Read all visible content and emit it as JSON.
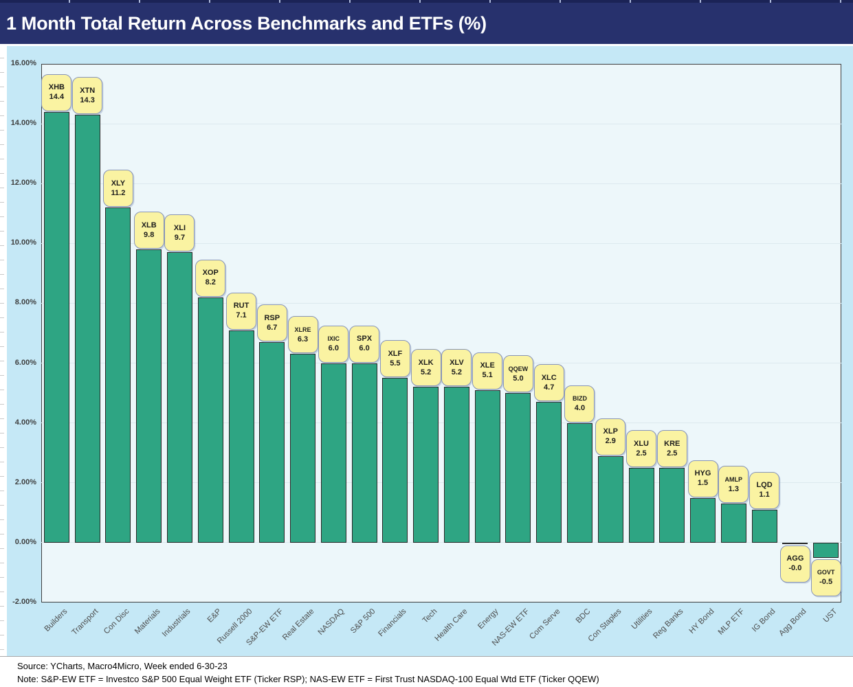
{
  "header": {
    "title": "1 Month Total Return Across Benchmarks and ETFs (%)"
  },
  "y_axis": {
    "tick_labels": [
      "16.00%",
      "14.00%",
      "12.00%",
      "10.00%",
      "8.00%",
      "6.00%",
      "4.00%",
      "2.00%",
      "0.00%",
      "-2.00%"
    ]
  },
  "chart_data": {
    "type": "bar",
    "title": "1 Month Total Return Across Benchmarks and ETFs (%)",
    "categories": [
      "Builders",
      "Transport",
      "Con Disc",
      "Materials",
      "Industrials",
      "E&P",
      "Russell 2000",
      "S&P-EW ETF",
      "Real Estate",
      "NASDAQ",
      "S&P 500",
      "Financials",
      "Tech",
      "Health Care",
      "Energy",
      "NAS-EW ETF",
      "Com Serve",
      "BDC",
      "Con Staples",
      "Utilities",
      "Reg Banks",
      "HY Bond",
      "MLP ETF",
      "IG Bond",
      "Agg Bond",
      "UST"
    ],
    "tickers": [
      "XHB",
      "XTN",
      "XLY",
      "XLB",
      "XLI",
      "XOP",
      "RUT",
      "RSP",
      "XLRE",
      "IXIC",
      "SPX",
      "XLF",
      "XLK",
      "XLV",
      "XLE",
      "QQEW",
      "XLC",
      "BIZD",
      "XLP",
      "XLU",
      "KRE",
      "HYG",
      "AMLP",
      "LQD",
      "AGG",
      "GOVT"
    ],
    "series": [
      {
        "name": "1 Month Total Return (%)",
        "values": [
          14.4,
          14.3,
          11.2,
          9.8,
          9.7,
          8.2,
          7.1,
          6.7,
          6.3,
          6.0,
          6.0,
          5.5,
          5.2,
          5.2,
          5.1,
          5.0,
          4.7,
          4.0,
          2.9,
          2.5,
          2.5,
          1.5,
          1.3,
          1.1,
          -0.0,
          -0.5
        ]
      }
    ],
    "value_labels": [
      "14.4",
      "14.3",
      "11.2",
      "9.8",
      "9.7",
      "8.2",
      "7.1",
      "6.7",
      "6.3",
      "6.0",
      "6.0",
      "5.5",
      "5.2",
      "5.2",
      "5.1",
      "5.0",
      "4.7",
      "4.0",
      "2.9",
      "2.5",
      "2.5",
      "1.5",
      "1.3",
      "1.1",
      "-0.0",
      "-0.5"
    ],
    "ylim": [
      -2,
      16
    ],
    "ytick_step": 2,
    "grid": true,
    "legend": "none",
    "label_style": "rounded-yellow-callout"
  },
  "footer": {
    "source": "Source: YCharts, Macro4Micro, Week ended 6-30-23",
    "note": "Note: S&P-EW ETF = Investco S&P 500 Equal Weight ETF (Ticker RSP); NAS-EW ETF = First Trust NASDAQ-100 Equal Wtd ETF (Ticker QQEW)"
  },
  "colors": {
    "header_bg": "#27316d",
    "chart_bg": "#c5e8f6",
    "plot_bg": "#edf7fa",
    "bar_fill": "#2ea583",
    "bar_border": "#262626",
    "callout_bg": "#faf3a2",
    "callout_border": "#8794b8",
    "gridline": "#dce9ee"
  }
}
